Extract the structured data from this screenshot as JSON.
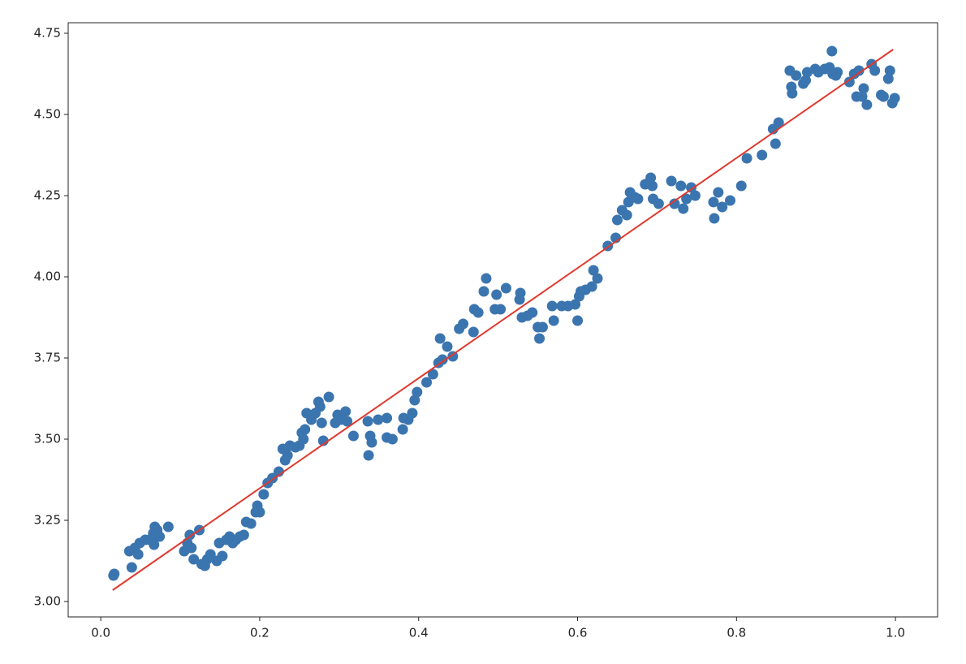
{
  "chart_data": {
    "type": "scatter",
    "xlim": [
      -0.041,
      1.053
    ],
    "ylim": [
      2.9525,
      4.7825
    ],
    "xticks": [
      {
        "value": 0,
        "label": "0.0"
      },
      {
        "value": 0.2,
        "label": "0.2"
      },
      {
        "value": 0.4,
        "label": "0.4"
      },
      {
        "value": 0.6,
        "label": "0.6"
      },
      {
        "value": 0.8,
        "label": "0.8"
      },
      {
        "value": 1,
        "label": "1.0"
      }
    ],
    "yticks": [
      {
        "value": 3,
        "label": "3.00"
      },
      {
        "value": 3.25,
        "label": "3.25"
      },
      {
        "value": 3.5,
        "label": "3.50"
      },
      {
        "value": 3.75,
        "label": "3.75"
      },
      {
        "value": 4,
        "label": "4.00"
      },
      {
        "value": 4.25,
        "label": "4.25"
      },
      {
        "value": 4.5,
        "label": "4.50"
      },
      {
        "value": 4.75,
        "label": "4.75"
      }
    ],
    "grid": false,
    "series": [
      {
        "kind": "markers",
        "color": "#3b75af",
        "x": [
          0.016,
          0.017,
          0.036,
          0.039,
          0.043,
          0.047,
          0.049,
          0.056,
          0.062,
          0.066,
          0.067,
          0.068,
          0.071,
          0.074,
          0.085,
          0.105,
          0.109,
          0.112,
          0.114,
          0.117,
          0.124,
          0.127,
          0.131,
          0.134,
          0.138,
          0.146,
          0.149,
          0.153,
          0.158,
          0.162,
          0.166,
          0.17,
          0.175,
          0.18,
          0.183,
          0.189,
          0.195,
          0.197,
          0.2,
          0.205,
          0.21,
          0.216,
          0.224,
          0.229,
          0.232,
          0.235,
          0.238,
          0.245,
          0.25,
          0.253,
          0.255,
          0.257,
          0.259,
          0.265,
          0.27,
          0.274,
          0.276,
          0.278,
          0.28,
          0.287,
          0.295,
          0.298,
          0.302,
          0.308,
          0.31,
          0.318,
          0.336,
          0.337,
          0.339,
          0.341,
          0.349,
          0.36,
          0.36,
          0.367,
          0.38,
          0.381,
          0.387,
          0.392,
          0.395,
          0.398,
          0.41,
          0.418,
          0.425,
          0.427,
          0.43,
          0.436,
          0.443,
          0.451,
          0.456,
          0.469,
          0.47,
          0.475,
          0.482,
          0.485,
          0.496,
          0.498,
          0.503,
          0.51,
          0.527,
          0.528,
          0.53,
          0.537,
          0.543,
          0.55,
          0.552,
          0.556,
          0.568,
          0.57,
          0.58,
          0.588,
          0.597,
          0.6,
          0.602,
          0.604,
          0.61,
          0.618,
          0.62,
          0.625,
          0.638,
          0.648,
          0.65,
          0.656,
          0.662,
          0.664,
          0.666,
          0.672,
          0.676,
          0.685,
          0.692,
          0.694,
          0.695,
          0.702,
          0.718,
          0.722,
          0.73,
          0.733,
          0.737,
          0.743,
          0.748,
          0.771,
          0.772,
          0.777,
          0.782,
          0.792,
          0.806,
          0.813,
          0.832,
          0.846,
          0.849,
          0.853,
          0.867,
          0.869,
          0.87,
          0.875,
          0.884,
          0.887,
          0.889,
          0.899,
          0.903,
          0.911,
          0.917,
          0.92,
          0.921,
          0.925,
          0.927,
          0.942,
          0.948,
          0.951,
          0.954,
          0.958,
          0.96,
          0.964,
          0.97,
          0.974,
          0.982,
          0.985,
          0.991,
          0.993,
          0.996,
          0.999
        ],
        "values": [
          3.08,
          3.085,
          3.155,
          3.105,
          3.165,
          3.145,
          3.18,
          3.19,
          3.19,
          3.21,
          3.175,
          3.23,
          3.22,
          3.2,
          3.23,
          3.155,
          3.18,
          3.205,
          3.165,
          3.13,
          3.22,
          3.115,
          3.11,
          3.13,
          3.145,
          3.125,
          3.18,
          3.14,
          3.19,
          3.2,
          3.18,
          3.19,
          3.2,
          3.205,
          3.245,
          3.24,
          3.275,
          3.295,
          3.275,
          3.33,
          3.365,
          3.38,
          3.4,
          3.47,
          3.435,
          3.45,
          3.48,
          3.475,
          3.48,
          3.52,
          3.5,
          3.53,
          3.58,
          3.56,
          3.58,
          3.615,
          3.6,
          3.55,
          3.495,
          3.63,
          3.55,
          3.575,
          3.56,
          3.585,
          3.555,
          3.51,
          3.555,
          3.45,
          3.51,
          3.49,
          3.56,
          3.565,
          3.505,
          3.5,
          3.53,
          3.565,
          3.56,
          3.58,
          3.62,
          3.645,
          3.675,
          3.7,
          3.735,
          3.81,
          3.745,
          3.785,
          3.755,
          3.84,
          3.855,
          3.83,
          3.9,
          3.89,
          3.955,
          3.995,
          3.9,
          3.945,
          3.9,
          3.965,
          3.93,
          3.95,
          3.875,
          3.88,
          3.89,
          3.845,
          3.81,
          3.845,
          3.91,
          3.865,
          3.91,
          3.91,
          3.915,
          3.865,
          3.94,
          3.955,
          3.96,
          3.97,
          4.02,
          3.995,
          4.095,
          4.12,
          4.175,
          4.205,
          4.19,
          4.23,
          4.26,
          4.245,
          4.24,
          4.285,
          4.305,
          4.28,
          4.24,
          4.225,
          4.295,
          4.225,
          4.28,
          4.21,
          4.24,
          4.275,
          4.25,
          4.23,
          4.18,
          4.26,
          4.215,
          4.235,
          4.28,
          4.365,
          4.375,
          4.455,
          4.41,
          4.475,
          4.635,
          4.585,
          4.565,
          4.62,
          4.595,
          4.605,
          4.63,
          4.64,
          4.63,
          4.64,
          4.645,
          4.695,
          4.625,
          4.62,
          4.63,
          4.6,
          4.625,
          4.555,
          4.635,
          4.555,
          4.58,
          4.53,
          4.655,
          4.635,
          4.56,
          4.555,
          4.61,
          4.635,
          4.535,
          4.55
        ]
      },
      {
        "kind": "line",
        "color": "#e0392e",
        "x": [
          0.015,
          0.997
        ],
        "values": [
          3.035,
          4.7
        ]
      }
    ]
  }
}
